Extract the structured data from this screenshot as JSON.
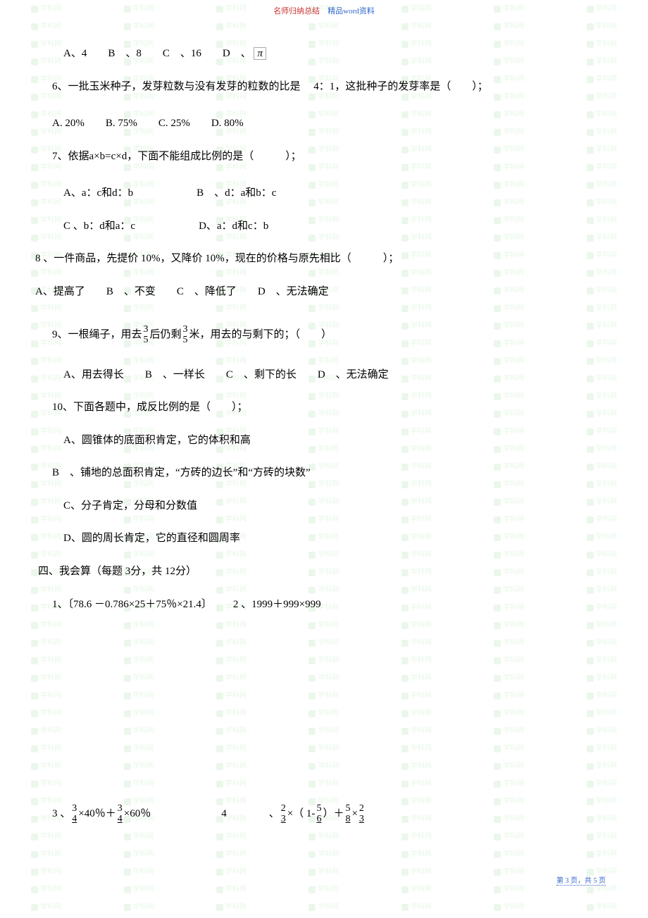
{
  "header": {
    "part1": "名师归纳总结",
    "part2": "精品word资料"
  },
  "watermark": {
    "text": "学科网",
    "url": "www.zxxk.com"
  },
  "lines": {
    "q5_options": "A、4  B 、8  C 、16  D 、",
    "pi": "π",
    "q6": "6、一批玉米种子，发芽粒数与没有发芽的粒数的比是  4：1，这批种子的发芽率是（  ）；",
    "q6_options": "A. 20%  B. 75%  C. 25%  D. 80%",
    "q7": "7、依据a×b=c×d，下面不能组成比例的是（   ）；",
    "q7_opt_ab": "A、a：c和d：b      B 、d：a和b：c",
    "q7_opt_cd": "C 、b：d和a：c      D、a：d和c：b",
    "q8": "8 、一件商品，先提价  10%，又降价 10%，现在的价格与原先相比（   ）；",
    "q8_options": "A、提高了  B 、不变  C 、降低了  D 、无法确定",
    "q9_p1": "9、一根绳子，用去 ",
    "q9_p2": " 后仍剩 ",
    "q9_p3": " 米，用去的与剩下的；（  ）",
    "q9_options": "A、用去得长  B 、一样长  C 、剩下的长  D 、无法确定",
    "q10": "10、下面各题中，成反比例的是（  ）；",
    "q10_a": "A、圆锥体的底面积肯定，它的体积和高",
    "q10_b": "B 、铺地的总面积肯定，“方砖的边长”和“方砖的块数”",
    "q10_c": "C、分子肯定，分母和分数值",
    "q10_d": "D、圆的周长肯定，它的直径和圆周率",
    "section4": "四、我会算（每题  3分，共  12分）",
    "calc12": "1、〔78.6 －0.786×25＋75％×21.4〕  2 、1999＋999×999",
    "calc3_p1": "3 、",
    "calc3_p2": " ×40％＋ ",
    "calc3_p3": " ×60％",
    "calc4_p1": "4    、",
    "calc4_p2": " ×（ 1- ",
    "calc4_p3": " ）＋ ",
    "calc4_p4": " × "
  },
  "fractions": {
    "three_five": {
      "num": "3",
      "den": "5"
    },
    "three_four": {
      "num": "3",
      "den": "4"
    },
    "two_three": {
      "num": "2",
      "den": "3"
    },
    "five_six": {
      "num": "5",
      "den": "6"
    },
    "five_eight": {
      "num": "5",
      "den": "8"
    }
  },
  "footer": {
    "text": "第 3 页，共 5 页"
  }
}
